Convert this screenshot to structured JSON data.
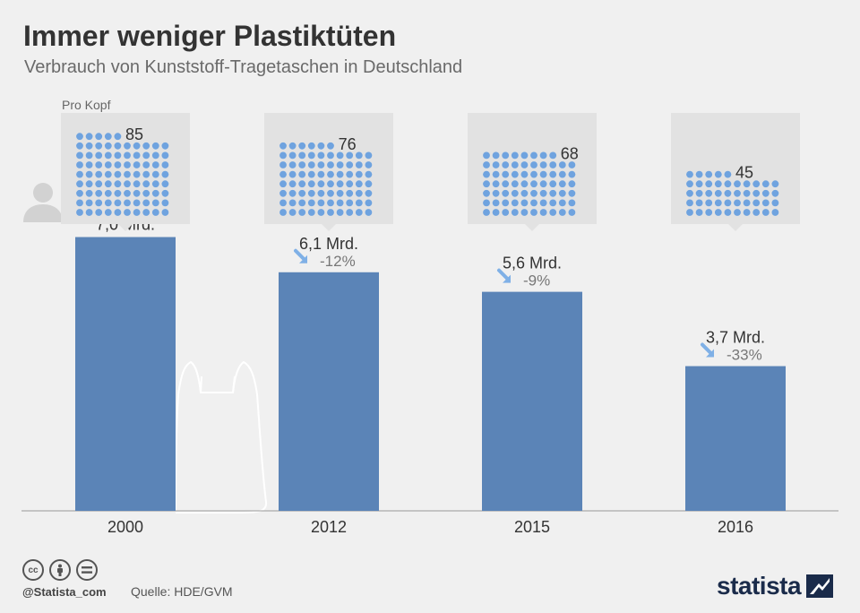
{
  "title": "Immer weniger Plastiktüten",
  "subtitle": "Verbrauch von Kunststoff-Tragetaschen in Deutschland",
  "per_capita_label": "Pro Kopf",
  "footer": {
    "handle": "@Statista_com",
    "source": "Quelle: HDE/GVM",
    "logo": "statista",
    "icons": [
      "cc-icon",
      "by-icon",
      "nd-icon"
    ]
  },
  "colors": {
    "bar": "#5b84b7",
    "dot": "#6fa3df",
    "arrow": "#7fb0e6",
    "panel": "#e2e2e2",
    "background": "#f0f0f0"
  },
  "chart_data": {
    "type": "bar",
    "categories": [
      "2000",
      "2012",
      "2015",
      "2016"
    ],
    "values": [
      7.0,
      6.1,
      5.6,
      3.7
    ],
    "value_labels": [
      "7,0 Mrd.",
      "6,1 Mrd.",
      "5,6 Mrd.",
      "3,7 Mrd."
    ],
    "change_labels": [
      "",
      "-12%",
      "-9%",
      "-33%"
    ],
    "per_capita": [
      85,
      76,
      68,
      45
    ],
    "ylim": [
      0,
      9.67
    ],
    "grid": false
  }
}
